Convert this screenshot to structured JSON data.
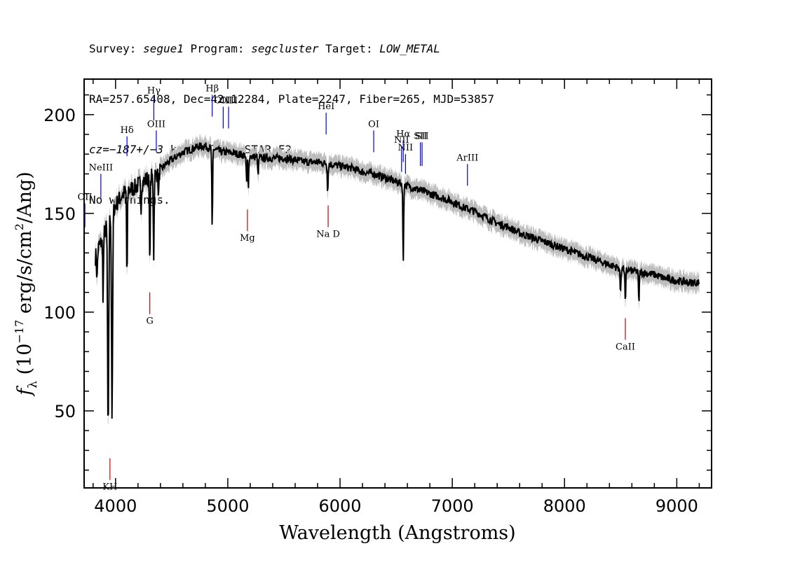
{
  "header": {
    "line1": {
      "survey_label": "Survey: ",
      "survey": "segue1",
      "program_label": " Program: ",
      "program": "segcluster",
      "target_label": " Target: ",
      "target": "LOW_METAL"
    },
    "line2": "RA=257.65408, Dec=42.12284, Plate=2247, Fiber=265, MJD=53857",
    "line3": {
      "cz": "cz=−187+/−3",
      "rest": " km/s Class=STAR F2"
    },
    "line4": "No warnings."
  },
  "colors": {
    "flux": "#000000",
    "error_band": "#bdbdbd",
    "emission_marker": "#0000cc",
    "absorption_marker": "#cc0000"
  },
  "chart_data": {
    "type": "line",
    "xlabel": "Wavelength (Angstroms)",
    "ylabel": "f_λ (10^-17 erg/s/cm^2/Ang)",
    "xlim": [
      3720,
      9310
    ],
    "ylim": [
      11,
      218
    ],
    "x_ticks": [
      4000,
      5000,
      6000,
      7000,
      8000,
      9000
    ],
    "x_tick_labels": [
      "4000",
      "5000",
      "6000",
      "7000",
      "8000",
      "9000"
    ],
    "y_ticks": [
      50,
      100,
      150,
      200
    ],
    "y_tick_labels": [
      "50",
      "100",
      "150",
      "200"
    ],
    "continuum": {
      "x": [
        3820,
        3850,
        3880,
        3900,
        3930,
        3960,
        3990,
        4030,
        4070,
        4120,
        4170,
        4220,
        4270,
        4300,
        4350,
        4400,
        4450,
        4500,
        4550,
        4600,
        4650,
        4700,
        4750,
        4800,
        4850,
        4900,
        4950,
        5000,
        5100,
        5200,
        5300,
        5400,
        5500,
        5600,
        5700,
        5800,
        5900,
        6000,
        6100,
        6200,
        6300,
        6400,
        6500,
        6600,
        6700,
        6800,
        6900,
        7000,
        7100,
        7200,
        7300,
        7400,
        7500,
        7600,
        7700,
        7800,
        7900,
        8000,
        8100,
        8200,
        8300,
        8400,
        8500,
        8600,
        8700,
        8800,
        8900,
        9000,
        9100,
        9200
      ],
      "y": [
        128,
        133,
        136,
        140,
        145,
        150,
        153,
        157,
        160,
        162,
        163,
        165,
        167,
        168,
        169,
        172,
        175,
        177,
        179,
        181,
        182,
        183,
        184,
        184,
        183,
        182,
        181,
        181,
        180,
        179,
        178,
        178,
        178,
        177,
        176,
        176,
        175,
        174,
        173,
        171,
        170,
        168,
        166,
        164,
        162,
        160,
        158,
        156,
        153,
        151,
        148,
        145,
        143,
        140,
        138,
        136,
        134,
        132,
        130,
        128,
        126,
        124,
        122,
        121,
        120,
        119,
        117,
        116,
        115,
        115
      ]
    },
    "absorption_lines": [
      {
        "x": 3835,
        "depth": 14
      },
      {
        "x": 3889,
        "depth": 30
      },
      {
        "x": 3934,
        "depth": 110
      },
      {
        "x": 3969,
        "depth": 105
      },
      {
        "x": 4102,
        "depth": 45
      },
      {
        "x": 4227,
        "depth": 12
      },
      {
        "x": 4305,
        "depth": 45
      },
      {
        "x": 4340,
        "depth": 40
      },
      {
        "x": 4383,
        "depth": 12
      },
      {
        "x": 4861,
        "depth": 42
      },
      {
        "x": 5167,
        "depth": 14
      },
      {
        "x": 5183,
        "depth": 18
      },
      {
        "x": 5270,
        "depth": 10
      },
      {
        "x": 5890,
        "depth": 14
      },
      {
        "x": 6563,
        "depth": 40
      },
      {
        "x": 8498,
        "depth": 12
      },
      {
        "x": 8542,
        "depth": 18
      },
      {
        "x": 8662,
        "depth": 16
      }
    ],
    "error_band_halfwidth": 4.5,
    "line_markers": [
      {
        "label": "NeIII",
        "x": 3869,
        "kind": "emission",
        "y_top": 170,
        "y_bot": 158
      },
      {
        "label": "Hδ",
        "x": 4102,
        "kind": "emission",
        "y_top": 189,
        "y_bot": 179
      },
      {
        "label": "Hγ",
        "x": 4341,
        "kind": "emission",
        "y_top": 209,
        "y_bot": 197
      },
      {
        "label": "OIII",
        "x": 4363,
        "kind": "emission",
        "y_top": 192,
        "y_bot": 181
      },
      {
        "label": "Hβ",
        "x": 4861,
        "kind": "emission",
        "y_top": 210,
        "y_bot": 199
      },
      {
        "label": "OIII",
        "x": 4959,
        "kind": "emission",
        "y_top": 204,
        "y_bot": 193
      },
      {
        "label": "OIII",
        "x": 5007,
        "kind": "emission",
        "y_top": 204,
        "y_bot": 193
      },
      {
        "label": "HeI",
        "x": 5876,
        "kind": "emission",
        "y_top": 201,
        "y_bot": 190
      },
      {
        "label": "OI",
        "x": 6300,
        "kind": "emission",
        "y_top": 192,
        "y_bot": 181
      },
      {
        "label": "NII",
        "x": 6548,
        "kind": "emission",
        "y_top": 184,
        "y_bot": 171
      },
      {
        "label": "Hα",
        "x": 6563,
        "kind": "emission",
        "y_top": 187,
        "y_bot": 176
      },
      {
        "label": "NII",
        "x": 6583,
        "kind": "emission",
        "y_top": 180,
        "y_bot": 170
      },
      {
        "label": "SII",
        "x": 6716,
        "kind": "emission",
        "y_top": 186,
        "y_bot": 174
      },
      {
        "label": "SII",
        "x": 6731,
        "kind": "emission",
        "y_top": 186,
        "y_bot": 174
      },
      {
        "label": "ArIII",
        "x": 7135,
        "kind": "emission",
        "y_top": 175,
        "y_bot": 164
      },
      {
        "label": "OII",
        "x": 3727,
        "kind": "emission",
        "y_top": 155,
        "y_bot": 143
      },
      {
        "label": "KH",
        "x": 3950,
        "kind": "absorption",
        "y_top": 26,
        "y_bot": 15
      },
      {
        "label": "G",
        "x": 4305,
        "kind": "absorption",
        "y_top": 110,
        "y_bot": 99
      },
      {
        "label": "Mg",
        "x": 5175,
        "kind": "absorption",
        "y_top": 152,
        "y_bot": 141
      },
      {
        "label": "Na D",
        "x": 5894,
        "kind": "absorption",
        "y_top": 154,
        "y_bot": 143
      },
      {
        "label": "CaII",
        "x": 8542,
        "kind": "absorption",
        "y_top": 97,
        "y_bot": 86
      }
    ]
  }
}
